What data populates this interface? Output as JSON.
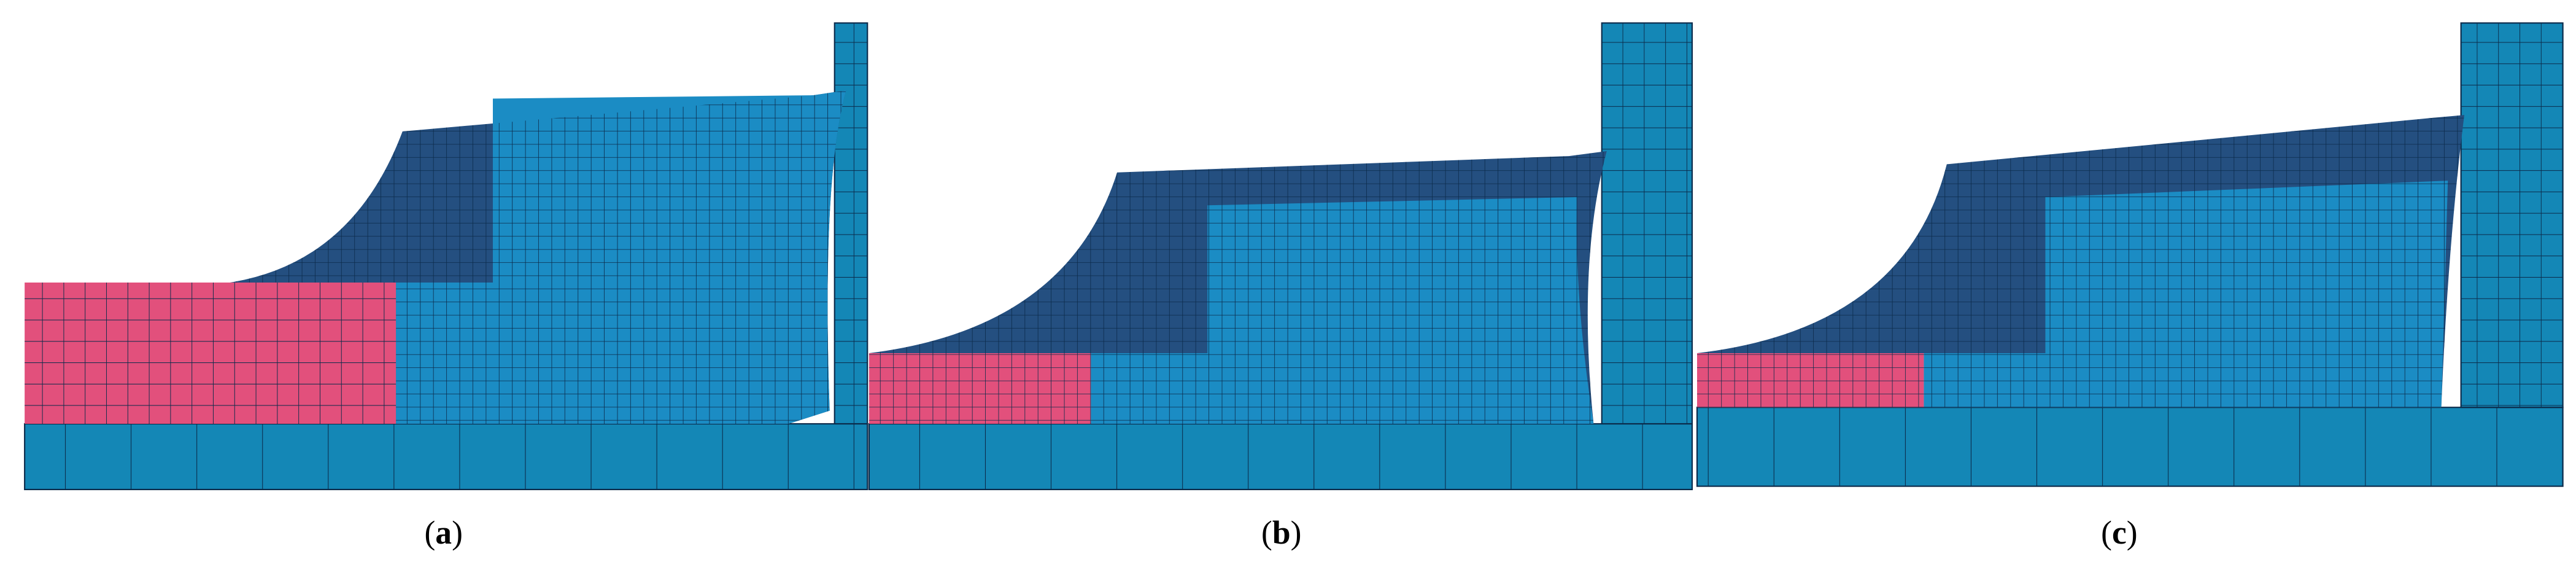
{
  "panels": [
    {
      "prefix": "(",
      "label": "a",
      "suffix": ")"
    },
    {
      "prefix": "(",
      "label": "b",
      "suffix": ")"
    },
    {
      "prefix": "(",
      "label": "c",
      "suffix": ")"
    }
  ]
}
